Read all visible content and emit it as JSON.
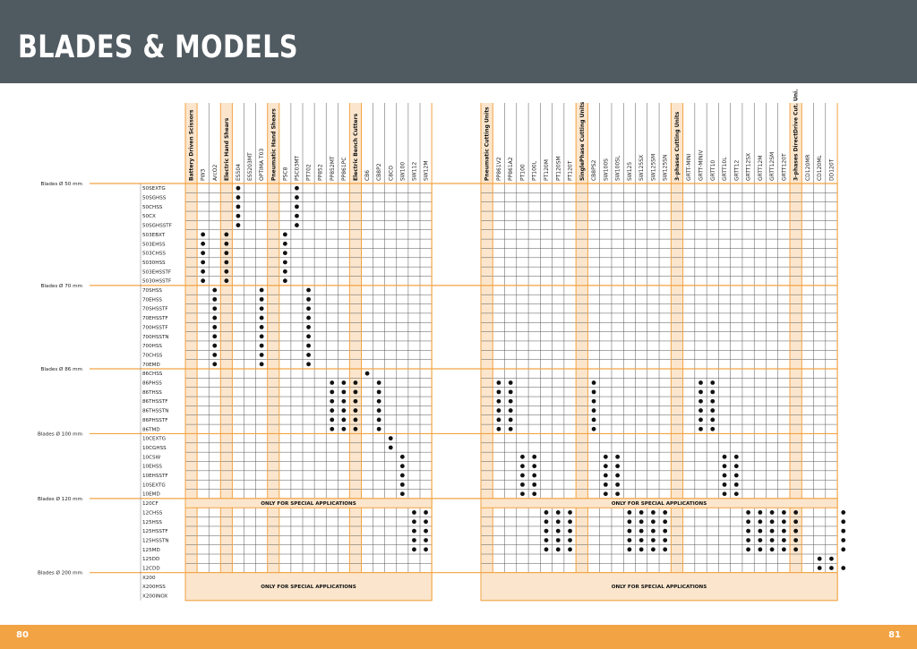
{
  "title": "BLADES & MODELS",
  "page_left": "80",
  "page_right": "81",
  "colors": {
    "header": "#505a61",
    "accent": "#f2a344",
    "band": "#fbe6cd",
    "dot": "#111111"
  },
  "special_text": "ONLY FOR SPECIAL APPLICATIONS",
  "left_cols": [
    {
      "label": "Battery Driven Scissors",
      "cat": true
    },
    {
      "label": "PW3"
    },
    {
      "label": "ArcO2"
    },
    {
      "label": "Electric Hand Shears",
      "cat": true
    },
    {
      "label": "ES504"
    },
    {
      "label": "ES5203MT"
    },
    {
      "label": "OPTIMA T03"
    },
    {
      "label": "Pneumatic Hand Shears",
      "cat": true
    },
    {
      "label": "PSC8"
    },
    {
      "label": "PSC03MT"
    },
    {
      "label": "PT702"
    },
    {
      "label": "PP852"
    },
    {
      "label": "PP852MT"
    },
    {
      "label": "PP861PC"
    },
    {
      "label": "Electric Bench Cutters",
      "cat": true
    },
    {
      "label": "CB6"
    },
    {
      "label": "CB8P2"
    },
    {
      "label": "C8CO"
    },
    {
      "label": "SW100"
    },
    {
      "label": "SW112"
    },
    {
      "label": "SW12M"
    }
  ],
  "right_cols": [
    {
      "label": "Pneumatic Cutting Units",
      "cat": true
    },
    {
      "label": "PP861V2"
    },
    {
      "label": "PP861A2"
    },
    {
      "label": "PT100"
    },
    {
      "label": "PT100L"
    },
    {
      "label": "PT120M"
    },
    {
      "label": "PT120SM"
    },
    {
      "label": "PT120T"
    },
    {
      "label": "SinglePhase Cutting Units",
      "cat": true
    },
    {
      "label": "CB8PS2"
    },
    {
      "label": "SW100S"
    },
    {
      "label": "SW100SL"
    },
    {
      "label": "SW125"
    },
    {
      "label": "SW125SX"
    },
    {
      "label": "SW125SM"
    },
    {
      "label": "SW125SN"
    },
    {
      "label": "3-phases Cutting Units",
      "cat": true
    },
    {
      "label": "GRTT-MINI"
    },
    {
      "label": "GRTT-MINIV"
    },
    {
      "label": "GRTT10"
    },
    {
      "label": "GRTT10L"
    },
    {
      "label": "GRTT12"
    },
    {
      "label": "GRTT12SX"
    },
    {
      "label": "GRTT12M"
    },
    {
      "label": "GRTT12SM"
    },
    {
      "label": "GRTT120T"
    },
    {
      "label": "3-phases DirectDrive Cut. Uni.",
      "cat": true
    },
    {
      "label": "CD120MR"
    },
    {
      "label": "CD120ML"
    },
    {
      "label": "DD120T"
    }
  ],
  "groups": [
    {
      "label": "Blades Ø 50 mm",
      "row": 0
    },
    {
      "label": "Blades Ø 70 mm",
      "row": 11
    },
    {
      "label": "Blades Ø 86 mm",
      "row": 20
    },
    {
      "label": "Blades Ø 100 mm",
      "row": 27
    },
    {
      "label": "Blades Ø 120 mm",
      "row": 34
    },
    {
      "label": "Blades Ø 200 mm",
      "row": 42
    }
  ],
  "rows": [
    {
      "label": "50SEXTG",
      "L": [
        4,
        9
      ],
      "R": []
    },
    {
      "label": "50SGHSS",
      "L": [
        4,
        9
      ],
      "R": []
    },
    {
      "label": "50CHSS",
      "L": [
        4,
        9
      ],
      "R": []
    },
    {
      "label": "50CX",
      "L": [
        4,
        9
      ],
      "R": []
    },
    {
      "label": "50SGHSSTF",
      "L": [
        4,
        9
      ],
      "R": []
    },
    {
      "label": "503EBXT",
      "L": [
        1,
        3,
        8
      ],
      "R": []
    },
    {
      "label": "503EHSS",
      "L": [
        1,
        3,
        8
      ],
      "R": []
    },
    {
      "label": "503CHSS",
      "L": [
        1,
        3,
        8
      ],
      "R": []
    },
    {
      "label": "5030HSS",
      "L": [
        1,
        3,
        8
      ],
      "R": []
    },
    {
      "label": "503EHSSTF",
      "L": [
        1,
        3,
        8
      ],
      "R": []
    },
    {
      "label": "5030HSSTF",
      "L": [
        1,
        3,
        8
      ],
      "R": []
    },
    {
      "label": "70SHSS",
      "L": [
        2,
        6,
        10
      ],
      "R": []
    },
    {
      "label": "70EHSS",
      "L": [
        2,
        6,
        10
      ],
      "R": []
    },
    {
      "label": "70SHSSTF",
      "L": [
        2,
        6,
        10
      ],
      "R": []
    },
    {
      "label": "70EHSSTF",
      "L": [
        2,
        6,
        10
      ],
      "R": []
    },
    {
      "label": "700HSSTF",
      "L": [
        2,
        6,
        10
      ],
      "R": []
    },
    {
      "label": "700HSSTN",
      "L": [
        2,
        6,
        10
      ],
      "R": []
    },
    {
      "label": "700HSS",
      "L": [
        2,
        6,
        10
      ],
      "R": []
    },
    {
      "label": "70CHSS",
      "L": [
        2,
        6,
        10
      ],
      "R": []
    },
    {
      "label": "70EMD",
      "L": [
        2,
        6,
        10
      ],
      "R": []
    },
    {
      "label": "86CHSS",
      "L": [
        15
      ],
      "R": []
    },
    {
      "label": "86PHSS",
      "L": [
        12,
        13,
        14,
        16
      ],
      "R": [
        1,
        2,
        9,
        18,
        19
      ]
    },
    {
      "label": "86THSS",
      "L": [
        12,
        13,
        14,
        16
      ],
      "R": [
        1,
        2,
        9,
        18,
        19
      ]
    },
    {
      "label": "86THSSTF",
      "L": [
        12,
        13,
        14,
        16
      ],
      "R": [
        1,
        2,
        9,
        18,
        19
      ]
    },
    {
      "label": "86THSSTN",
      "L": [
        12,
        13,
        14,
        16
      ],
      "R": [
        1,
        2,
        9,
        18,
        19
      ]
    },
    {
      "label": "86PHSSTF",
      "L": [
        12,
        13,
        14,
        16
      ],
      "R": [
        1,
        2,
        9,
        18,
        19
      ]
    },
    {
      "label": "86TMD",
      "L": [
        12,
        13,
        14,
        16
      ],
      "R": [
        1,
        2,
        9,
        18,
        19
      ]
    },
    {
      "label": "10CEXTG",
      "L": [
        17
      ],
      "R": []
    },
    {
      "label": "10CGHSS",
      "L": [
        17
      ],
      "R": []
    },
    {
      "label": "10CSW",
      "L": [
        18
      ],
      "R": [
        3,
        4,
        10,
        11,
        20,
        21
      ]
    },
    {
      "label": "10EHSS",
      "L": [
        18
      ],
      "R": [
        3,
        4,
        10,
        11,
        20,
        21
      ]
    },
    {
      "label": "10EHSSTF",
      "L": [
        18
      ],
      "R": [
        3,
        4,
        10,
        11,
        20,
        21
      ]
    },
    {
      "label": "10SEXTG",
      "L": [
        18
      ],
      "R": [
        3,
        4,
        10,
        11,
        20,
        21
      ]
    },
    {
      "label": "10EMD",
      "L": [
        18
      ],
      "R": [
        3,
        4,
        10,
        11,
        20,
        21
      ]
    },
    {
      "label": "120CF",
      "special": true
    },
    {
      "label": "12CHSS",
      "L": [
        19,
        20
      ],
      "R": [
        5,
        6,
        7,
        12,
        13,
        14,
        15,
        22,
        23,
        24,
        25,
        26,
        30
      ]
    },
    {
      "label": "125HSS",
      "L": [
        19,
        20
      ],
      "R": [
        5,
        6,
        7,
        12,
        13,
        14,
        15,
        22,
        23,
        24,
        25,
        26,
        30
      ]
    },
    {
      "label": "125HSSTF",
      "L": [
        19,
        20
      ],
      "R": [
        5,
        6,
        7,
        12,
        13,
        14,
        15,
        22,
        23,
        24,
        25,
        26,
        30
      ]
    },
    {
      "label": "125HSSTN",
      "L": [
        19,
        20
      ],
      "R": [
        5,
        6,
        7,
        12,
        13,
        14,
        15,
        22,
        23,
        24,
        25,
        26,
        30
      ]
    },
    {
      "label": "125MD",
      "L": [
        19,
        20
      ],
      "R": [
        5,
        6,
        7,
        12,
        13,
        14,
        15,
        22,
        23,
        24,
        25,
        26,
        30
      ]
    },
    {
      "label": "125DD",
      "L": [],
      "R": [
        28,
        29
      ]
    },
    {
      "label": "12CDD",
      "L": [],
      "R": [
        28,
        29,
        30
      ]
    },
    {
      "label": "X200",
      "special": true
    },
    {
      "label": "X200HSS",
      "special": true
    },
    {
      "label": "X200INOX",
      "special": true
    }
  ]
}
